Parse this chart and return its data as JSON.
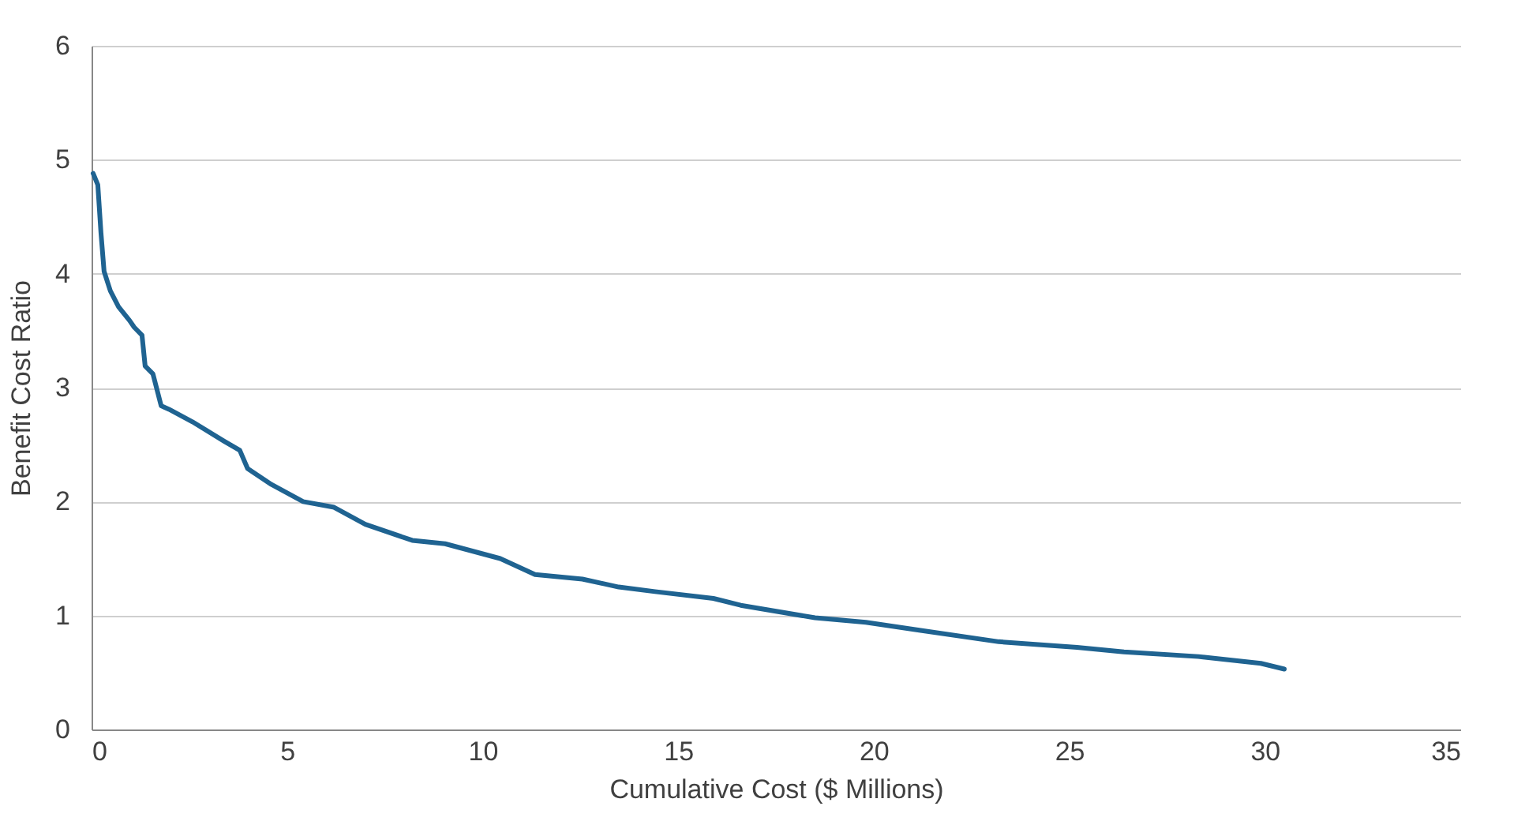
{
  "chart_data": {
    "type": "line",
    "xlabel": "Cumulative Cost ($ Millions)",
    "ylabel": "Benefit Cost Ratio",
    "xlim": [
      0,
      35
    ],
    "xticks": [
      0,
      5,
      10,
      15,
      20,
      25,
      30,
      35
    ],
    "ylim": [
      0,
      6
    ],
    "yticks": [
      0,
      1,
      2,
      3,
      4,
      5,
      6
    ],
    "grid": "y",
    "series": [
      {
        "color": "#1f6391",
        "x": [
          0.04,
          0.16,
          0.24,
          0.32,
          0.48,
          0.69,
          0.97,
          1.09,
          1.29,
          1.37,
          1.57,
          1.78,
          1.98,
          2.58,
          3.39,
          3.79,
          3.99,
          4.6,
          5.41,
          6.2,
          7.0,
          8.2,
          9.04,
          10.45,
          11.34,
          12.55,
          13.48,
          14.41,
          15.9,
          16.6,
          18.5,
          19.8,
          21.2,
          23.2,
          25.2,
          26.4,
          28.3,
          29.9,
          30.5
        ],
        "values": [
          4.88,
          4.78,
          4.36,
          4.02,
          3.85,
          3.71,
          3.59,
          3.53,
          3.46,
          3.19,
          3.12,
          2.84,
          2.81,
          2.7,
          2.53,
          2.45,
          2.29,
          2.15,
          2.0,
          1.95,
          1.8,
          1.66,
          1.63,
          1.5,
          1.36,
          1.32,
          1.25,
          1.21,
          1.15,
          1.09,
          0.98,
          0.94,
          0.87,
          0.77,
          0.72,
          0.68,
          0.64,
          0.58,
          0.53
        ]
      }
    ]
  }
}
